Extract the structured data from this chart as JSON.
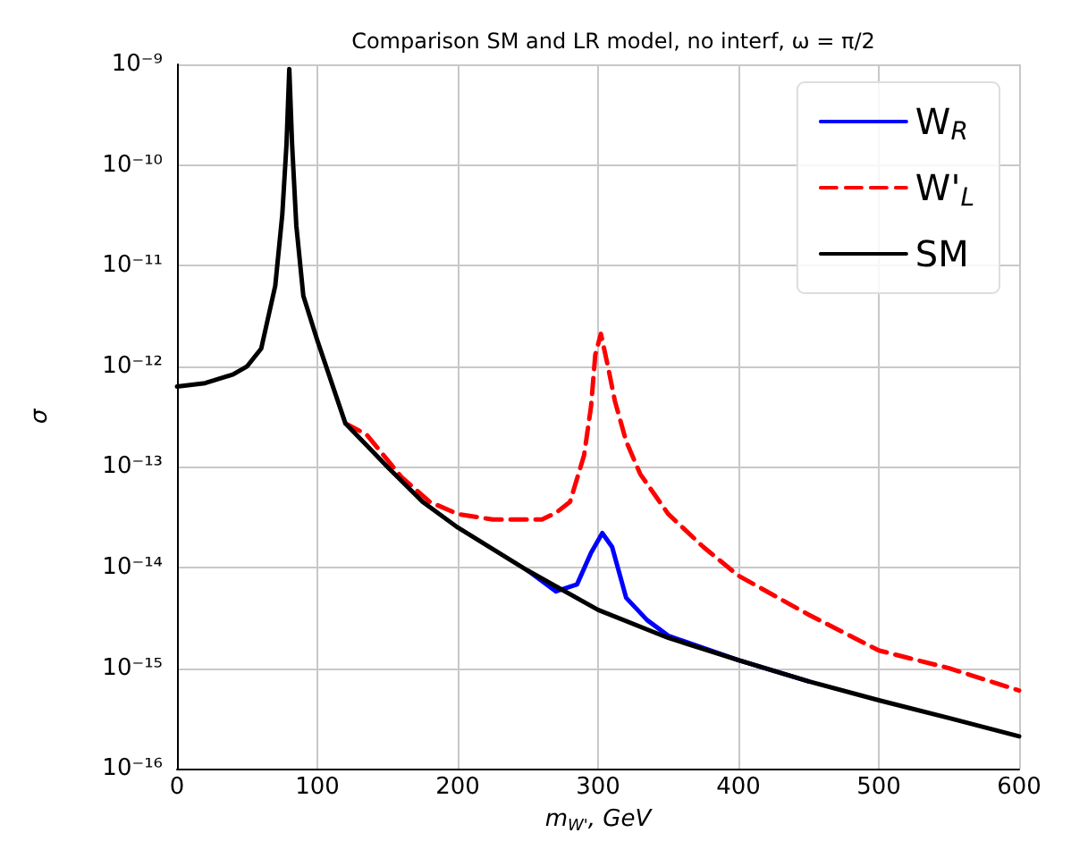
{
  "chart_data": {
    "type": "line",
    "title": "Comparison SM and LR model, no interf, ω = π/2",
    "xlabel": "m$_{W'}$, GeV",
    "ylabel": "σ",
    "log": "y",
    "grid": true,
    "legend": "top right",
    "marker": "none",
    "xlim": [
      0,
      600
    ],
    "xticks": [
      0,
      100,
      200,
      300,
      400,
      500,
      600
    ],
    "ylim": [
      1e-16,
      1e-09
    ],
    "yticks": [
      {
        "value": 1e-16,
        "label": "10⁻¹⁶"
      },
      {
        "value": 1e-15,
        "label": "10⁻¹⁵"
      },
      {
        "value": 1e-14,
        "label": "10⁻¹⁴"
      },
      {
        "value": 1e-13,
        "label": "10⁻¹³"
      },
      {
        "value": 1e-12,
        "label": "10⁻¹²"
      },
      {
        "value": 1e-11,
        "label": "10⁻¹¹"
      },
      {
        "value": 1e-10,
        "label": "10⁻¹⁰"
      },
      {
        "value": 1e-09,
        "label": "10⁻⁹"
      }
    ],
    "series": [
      {
        "name": "W$_{R}$",
        "color": "#0000ff",
        "line_style": "solid",
        "x": [
          250,
          270,
          285,
          295,
          303,
          310,
          320,
          335,
          350,
          400,
          450
        ],
        "values": [
          9.3e-15,
          5.8e-15,
          6.8e-15,
          1.4e-14,
          2.2e-14,
          1.6e-14,
          5e-15,
          3e-15,
          2.1e-15,
          1.2e-15,
          7.4e-16
        ]
      },
      {
        "name": "W'$_{L}$",
        "color": "#ff0000",
        "line_style": "dashed",
        "x": [
          120,
          135,
          160,
          180,
          200,
          225,
          260,
          270,
          280,
          290,
          295,
          298,
          302,
          307,
          312,
          320,
          330,
          350,
          375,
          400,
          450,
          500,
          550,
          600
        ],
        "values": [
          2.7e-13,
          2.1e-13,
          7.9e-14,
          4.5e-14,
          3.4e-14,
          3e-14,
          3e-14,
          3.5e-14,
          4.5e-14,
          1.3e-13,
          4e-13,
          1.3e-12,
          2.1e-12,
          1e-12,
          4.5e-13,
          1.8e-13,
          8.5e-14,
          3.4e-14,
          1.6e-14,
          8.3e-15,
          3.4e-15,
          1.5e-15,
          1e-15,
          6e-16
        ]
      },
      {
        "name": "SM",
        "color": "#000000",
        "line_style": "solid",
        "x": [
          0,
          20,
          40,
          50,
          60,
          70,
          75,
          78,
          80,
          82,
          85,
          90,
          100,
          120,
          150,
          175,
          200,
          250,
          300,
          350,
          400,
          450,
          500,
          550,
          600
        ],
        "values": [
          6.3e-13,
          6.8e-13,
          8.3e-13,
          1e-12,
          1.5e-12,
          6.3e-12,
          3.2e-11,
          1.6e-10,
          9e-10,
          1.6e-10,
          2.5e-11,
          5e-12,
          1.8e-12,
          2.7e-13,
          1e-13,
          4.5e-14,
          2.5e-14,
          9.3e-15,
          3.8e-15,
          2e-15,
          1.2e-15,
          7.4e-16,
          4.8e-16,
          3.2e-16,
          2.1e-16
        ]
      }
    ]
  }
}
